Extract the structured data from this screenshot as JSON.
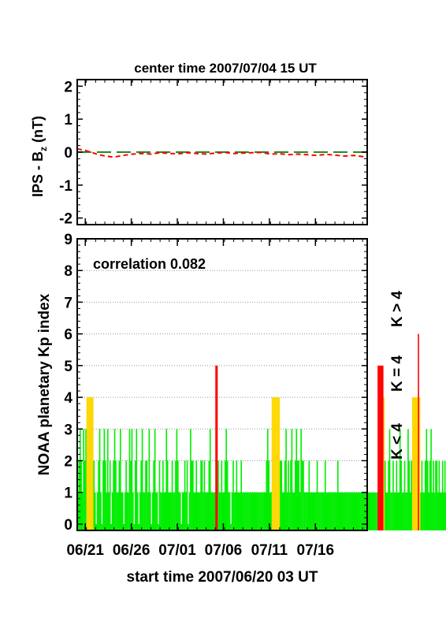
{
  "colors": {
    "low": "#00ee00",
    "mid": "#ffd700",
    "high": "#ff0000",
    "bz_ips": "#ff0000",
    "bz_zero": "#228b22",
    "grid": "#999999"
  },
  "top_title": "center time 2007/07/04 15 UT",
  "bottom_title": "start time 2007/06/20 03 UT",
  "correlation_label": "correlation 0.082",
  "legend": {
    "low": "K < 4",
    "mid": "K = 4",
    "high": "K > 4"
  },
  "chart_data": [
    {
      "type": "line",
      "ylabel": "IPS - B",
      "ylabel_sub": "z",
      "ylabel_unit": "(nT)",
      "ylim": [
        -2.2,
        2.2
      ],
      "xlim": [
        0,
        31.5
      ],
      "yticks": [
        -2,
        -1,
        0,
        1,
        2
      ],
      "ytick_labels": [
        "-2",
        "-1",
        "0",
        "1",
        "2"
      ],
      "series": [
        {
          "style": "dashed",
          "x": [
            0,
            1,
            2,
            3,
            4,
            5,
            6,
            7,
            8,
            9,
            10,
            11,
            12,
            13,
            14,
            15,
            16,
            17,
            18,
            19,
            20,
            21,
            22,
            23,
            24,
            25,
            26,
            27,
            28,
            29,
            30,
            31.5
          ],
          "values": [
            0.1,
            0.04,
            -0.05,
            -0.12,
            -0.15,
            -0.1,
            -0.06,
            -0.04,
            -0.06,
            -0.02,
            -0.04,
            -0.05,
            -0.02,
            -0.04,
            -0.06,
            -0.03,
            -0.01,
            -0.04,
            -0.03,
            -0.02,
            -0.01,
            -0.06,
            -0.05,
            -0.08,
            -0.06,
            -0.08,
            -0.1,
            -0.07,
            -0.09,
            -0.12,
            -0.1,
            -0.15
          ]
        },
        {
          "style": "long-dashed",
          "x": [
            0,
            31.5
          ],
          "values": [
            0,
            0
          ]
        }
      ]
    },
    {
      "type": "bar",
      "ylabel": "NOAA planetary Kp index",
      "ylim": [
        -0.2,
        9
      ],
      "xlim": [
        0,
        31.5
      ],
      "yticks": [
        0,
        1,
        2,
        3,
        4,
        5,
        6,
        7,
        8,
        9
      ],
      "ytick_labels": [
        "0",
        "1",
        "2",
        "3",
        "4",
        "5",
        "6",
        "7",
        "8",
        "9"
      ],
      "xticks": [
        0.875,
        5.875,
        10.875,
        15.875,
        20.875,
        25.875
      ],
      "xtick_labels": [
        "06/21",
        "06/26",
        "07/01",
        "07/06",
        "07/11",
        "07/16"
      ],
      "grid": true,
      "bar_width_days": 0.125,
      "bars_start": 0,
      "bars": [
        1,
        2,
        3,
        2,
        1,
        3,
        2,
        3,
        4,
        4,
        4,
        4,
        4,
        4,
        2,
        1,
        0,
        1,
        2,
        3,
        1,
        0,
        2,
        3,
        2,
        1,
        3,
        1,
        2,
        0,
        1,
        2,
        3,
        2,
        1,
        1,
        2,
        3,
        1,
        1,
        0,
        1,
        2,
        1,
        1,
        3,
        2,
        3,
        1,
        0,
        2,
        3,
        1,
        0,
        1,
        2,
        3,
        1,
        1,
        2,
        2,
        1,
        3,
        1,
        0,
        1,
        2,
        3,
        1,
        1,
        0,
        2,
        1,
        1,
        2,
        1,
        1,
        3,
        2,
        1,
        1,
        1,
        2,
        1,
        1,
        2,
        3,
        2,
        1,
        1,
        0,
        1,
        1,
        2,
        1,
        2,
        0,
        1,
        3,
        2,
        2,
        1,
        1,
        2,
        1,
        1,
        1,
        2,
        2,
        1,
        2,
        1,
        1,
        1,
        2,
        3,
        1,
        1,
        1,
        1,
        5,
        5,
        2,
        1,
        1,
        2,
        1,
        1,
        2,
        3,
        2,
        1,
        1,
        0,
        1,
        2,
        1,
        1,
        2,
        1,
        1,
        1,
        2,
        1,
        1,
        1,
        1,
        1,
        1,
        1,
        1,
        1,
        1,
        1,
        1,
        1,
        1,
        1,
        1,
        1,
        1,
        1,
        1,
        1,
        2,
        3,
        2,
        1,
        1,
        4,
        4,
        4,
        4,
        4,
        4,
        4,
        2,
        2,
        1,
        1,
        2,
        3,
        1,
        2,
        1,
        2,
        3,
        1,
        1,
        2,
        3,
        2,
        2,
        1,
        3,
        2,
        2,
        1,
        1,
        1,
        1,
        2,
        1,
        1,
        1,
        1,
        1,
        1,
        2,
        1,
        1,
        1,
        1,
        1,
        1,
        2,
        1,
        1,
        1,
        1,
        1,
        1,
        1,
        1,
        1,
        1,
        2,
        1,
        1,
        1,
        1,
        1,
        1,
        1,
        1,
        1,
        1,
        1,
        1,
        1,
        1,
        1,
        1,
        1,
        1,
        1,
        1,
        1,
        1,
        1,
        1,
        1,
        1,
        1,
        1,
        1,
        1,
        1,
        1,
        1,
        1,
        5,
        5,
        5,
        5,
        5,
        4,
        2,
        1,
        1,
        2,
        3,
        1,
        1,
        2,
        1,
        1,
        2,
        1,
        1,
        3,
        2,
        1,
        1,
        2,
        1,
        1,
        3,
        2,
        1,
        2,
        4,
        4,
        4,
        4,
        4,
        6,
        4,
        1,
        2,
        1,
        1,
        2,
        3,
        2,
        1,
        2,
        3,
        1,
        2,
        1,
        2,
        2,
        1,
        2,
        1,
        1,
        2,
        1,
        2,
        1,
        1,
        2,
        1,
        0,
        1,
        2,
        1,
        1,
        1,
        1,
        1,
        0,
        1,
        1,
        1,
        1,
        1
      ]
    }
  ]
}
